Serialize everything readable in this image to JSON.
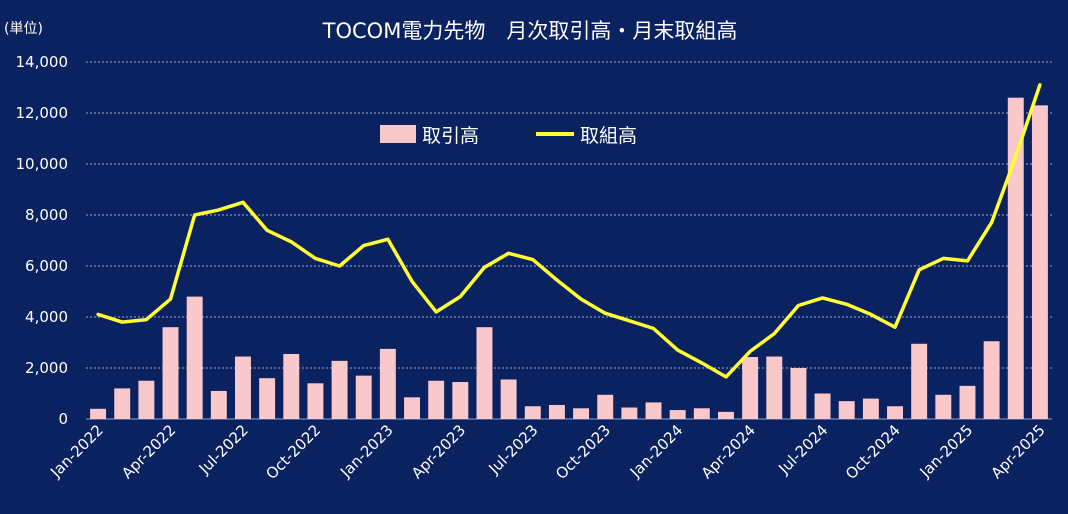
{
  "chart_data": {
    "type": "bar",
    "title": "TOCOM電力先物　月次取引高・月末取組高",
    "unit_label": "(単位)",
    "ylim": [
      0,
      14000
    ],
    "y_ticks": [
      0,
      2000,
      4000,
      6000,
      8000,
      10000,
      12000,
      14000
    ],
    "y_tick_labels": [
      "0",
      "2,000",
      "4,000",
      "6,000",
      "8,000",
      "10,000",
      "12,000",
      "14,000"
    ],
    "grid": true,
    "legend_position": "top-center",
    "x_tick_labels": [
      {
        "index": 0,
        "label": "Jan-2022"
      },
      {
        "index": 3,
        "label": "Apr-2022"
      },
      {
        "index": 6,
        "label": "Jul-2022"
      },
      {
        "index": 9,
        "label": "Oct-2022"
      },
      {
        "index": 12,
        "label": "Jan-2023"
      },
      {
        "index": 15,
        "label": "Apr-2023"
      },
      {
        "index": 18,
        "label": "Jul-2023"
      },
      {
        "index": 21,
        "label": "Oct-2023"
      },
      {
        "index": 24,
        "label": "Jan-2024"
      },
      {
        "index": 27,
        "label": "Apr-2024"
      },
      {
        "index": 30,
        "label": "Jul-2024"
      },
      {
        "index": 33,
        "label": "Oct-2024"
      },
      {
        "index": 36,
        "label": "Jan-2025"
      },
      {
        "index": 39,
        "label": "Apr-2025"
      }
    ],
    "series": [
      {
        "name": "取引高",
        "kind": "bar",
        "color": "#f8c8cb",
        "values": [
          400,
          1200,
          1500,
          3600,
          4800,
          1100,
          2450,
          1600,
          2550,
          1400,
          2280,
          1700,
          2750,
          850,
          1500,
          1450,
          3600,
          1550,
          500,
          550,
          420,
          950,
          450,
          650,
          350,
          420,
          280,
          2430,
          2450,
          2000,
          1000,
          700,
          800,
          500,
          2950,
          950,
          1300,
          3050,
          12600,
          12300
        ]
      },
      {
        "name": "取組高",
        "kind": "line",
        "color": "#ffff33",
        "values": [
          4100,
          3800,
          3900,
          4700,
          8000,
          8200,
          8500,
          7400,
          6950,
          6300,
          6000,
          6800,
          7050,
          5400,
          4200,
          4800,
          5950,
          6500,
          6250,
          5450,
          4700,
          4150,
          3850,
          3550,
          2700,
          2200,
          1650,
          2650,
          3350,
          4450,
          4750,
          4500,
          4100,
          3600,
          5850,
          6300,
          6200,
          7700,
          10300,
          13100
        ]
      }
    ]
  }
}
